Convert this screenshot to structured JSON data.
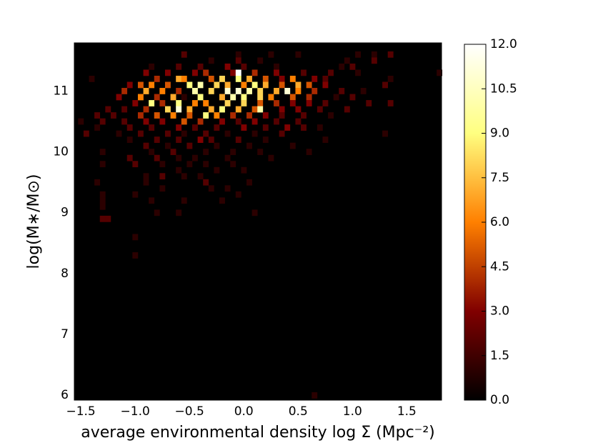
{
  "chart_data": {
    "type": "heatmap",
    "xlabel": "average environmental density log Σ (Mpc⁻²)",
    "ylabel": "log(M∗/M⊙)",
    "xlim": [
      -1.56,
      1.82
    ],
    "ylim": [
      5.92,
      11.79
    ],
    "xticks": [
      {
        "value": -1.5,
        "label": "−1.5"
      },
      {
        "value": -1.0,
        "label": "−1.0"
      },
      {
        "value": -0.5,
        "label": "−0.5"
      },
      {
        "value": 0.0,
        "label": "0.0"
      },
      {
        "value": 0.5,
        "label": "0.5"
      },
      {
        "value": 1.0,
        "label": "1.0"
      },
      {
        "value": 1.5,
        "label": "1.5"
      }
    ],
    "yticks": [
      6,
      7,
      8,
      9,
      10,
      11
    ],
    "colormap": "afmhot",
    "clim": [
      0,
      12
    ],
    "cticks": [
      {
        "value": 0,
        "label": "0.0"
      },
      {
        "value": 1.5,
        "label": "1.5"
      },
      {
        "value": 3,
        "label": "3.0"
      },
      {
        "value": 4.5,
        "label": "4.5"
      },
      {
        "value": 6,
        "label": "6.0"
      },
      {
        "value": 7.5,
        "label": "7.5"
      },
      {
        "value": 9,
        "label": "9.0"
      },
      {
        "value": 10.5,
        "label": "10.5"
      },
      {
        "value": 12,
        "label": "12.0"
      }
    ],
    "cells": [
      [
        -0.55,
        11.6,
        2
      ],
      [
        -0.05,
        11.6,
        1
      ],
      [
        0.25,
        11.6,
        1
      ],
      [
        0.5,
        11.6,
        1
      ],
      [
        1.05,
        11.6,
        1
      ],
      [
        1.2,
        11.6,
        1
      ],
      [
        1.35,
        11.6,
        2
      ],
      [
        -0.3,
        11.5,
        1
      ],
      [
        -0.05,
        11.5,
        2
      ],
      [
        0.15,
        11.5,
        1
      ],
      [
        0.95,
        11.5,
        1
      ],
      [
        1.2,
        11.5,
        2
      ],
      [
        -0.85,
        11.4,
        1
      ],
      [
        -0.6,
        11.4,
        2
      ],
      [
        -0.4,
        11.4,
        2
      ],
      [
        -0.15,
        11.4,
        3
      ],
      [
        0.0,
        11.4,
        2
      ],
      [
        0.3,
        11.4,
        1
      ],
      [
        0.9,
        11.4,
        1
      ],
      [
        1.0,
        11.4,
        2
      ],
      [
        -0.9,
        11.3,
        3
      ],
      [
        -0.7,
        11.3,
        3
      ],
      [
        -0.45,
        11.3,
        3
      ],
      [
        -0.35,
        11.3,
        4
      ],
      [
        -0.1,
        11.3,
        3
      ],
      [
        -0.05,
        11.3,
        12
      ],
      [
        0.1,
        11.3,
        4
      ],
      [
        0.3,
        11.3,
        3
      ],
      [
        0.55,
        11.3,
        2
      ],
      [
        0.8,
        11.3,
        2
      ],
      [
        1.05,
        11.3,
        1
      ],
      [
        1.8,
        11.3,
        1
      ],
      [
        -1.4,
        11.2,
        1
      ],
      [
        -0.8,
        11.2,
        4
      ],
      [
        -0.6,
        11.2,
        7
      ],
      [
        -0.55,
        11.2,
        6
      ],
      [
        -0.3,
        11.2,
        5
      ],
      [
        -0.2,
        11.2,
        8
      ],
      [
        -0.05,
        11.2,
        9
      ],
      [
        0.05,
        11.2,
        7
      ],
      [
        0.2,
        11.2,
        5
      ],
      [
        0.35,
        11.2,
        3
      ],
      [
        0.45,
        11.2,
        6
      ],
      [
        0.65,
        11.2,
        3
      ],
      [
        0.75,
        11.2,
        2
      ],
      [
        1.35,
        11.2,
        1
      ],
      [
        -1.05,
        11.1,
        3
      ],
      [
        -0.95,
        11.1,
        5
      ],
      [
        -0.85,
        11.1,
        6
      ],
      [
        -0.7,
        11.1,
        5
      ],
      [
        -0.5,
        11.1,
        9
      ],
      [
        -0.4,
        11.1,
        10
      ],
      [
        -0.25,
        11.1,
        8
      ],
      [
        -0.15,
        11.1,
        7
      ],
      [
        0.0,
        11.1,
        6
      ],
      [
        0.1,
        11.1,
        9
      ],
      [
        0.2,
        11.1,
        7
      ],
      [
        0.35,
        11.1,
        5
      ],
      [
        0.5,
        11.1,
        7
      ],
      [
        0.6,
        11.1,
        5
      ],
      [
        0.75,
        11.1,
        3
      ],
      [
        1.3,
        11.1,
        2
      ],
      [
        -1.1,
        11.0,
        4
      ],
      [
        -0.9,
        11.0,
        7
      ],
      [
        -0.75,
        11.0,
        6
      ],
      [
        -0.6,
        11.0,
        4
      ],
      [
        -0.45,
        11.0,
        10
      ],
      [
        -0.3,
        11.0,
        8
      ],
      [
        -0.15,
        11.0,
        11
      ],
      [
        -0.05,
        11.0,
        11
      ],
      [
        0.05,
        11.0,
        10
      ],
      [
        0.15,
        11.0,
        8
      ],
      [
        0.3,
        11.0,
        7
      ],
      [
        0.4,
        11.0,
        11
      ],
      [
        0.5,
        11.0,
        6
      ],
      [
        0.65,
        11.0,
        4
      ],
      [
        0.9,
        11.0,
        2
      ],
      [
        1.1,
        11.0,
        1
      ],
      [
        -1.15,
        10.9,
        3
      ],
      [
        -0.95,
        10.9,
        6
      ],
      [
        -0.8,
        10.9,
        4
      ],
      [
        -0.65,
        10.9,
        7
      ],
      [
        -0.55,
        10.9,
        1
      ],
      [
        -0.4,
        10.9,
        9
      ],
      [
        -0.2,
        10.9,
        7
      ],
      [
        -0.1,
        10.9,
        10
      ],
      [
        0.0,
        10.9,
        9
      ],
      [
        0.15,
        10.9,
        8
      ],
      [
        0.25,
        10.9,
        6
      ],
      [
        0.45,
        10.9,
        5
      ],
      [
        0.6,
        10.9,
        4
      ],
      [
        0.85,
        10.9,
        1
      ],
      [
        1.0,
        10.9,
        2
      ],
      [
        -1.0,
        10.8,
        3
      ],
      [
        -0.85,
        10.8,
        9
      ],
      [
        -0.75,
        10.8,
        4
      ],
      [
        -0.6,
        10.8,
        9
      ],
      [
        -0.45,
        10.8,
        6
      ],
      [
        -0.35,
        10.8,
        6
      ],
      [
        -0.15,
        10.8,
        8
      ],
      [
        0.0,
        10.8,
        8
      ],
      [
        0.15,
        10.8,
        5
      ],
      [
        0.3,
        10.8,
        4
      ],
      [
        0.45,
        10.8,
        3
      ],
      [
        0.6,
        10.8,
        3
      ],
      [
        0.75,
        10.8,
        2
      ],
      [
        1.15,
        10.8,
        2
      ],
      [
        1.35,
        10.8,
        2
      ],
      [
        -1.25,
        10.7,
        2
      ],
      [
        -1.1,
        10.7,
        2
      ],
      [
        -0.9,
        10.7,
        4
      ],
      [
        -0.7,
        10.7,
        8
      ],
      [
        -0.6,
        10.7,
        11
      ],
      [
        -0.5,
        10.7,
        7
      ],
      [
        -0.3,
        10.7,
        7
      ],
      [
        -0.2,
        10.7,
        9
      ],
      [
        -0.05,
        10.7,
        7
      ],
      [
        0.1,
        10.7,
        5
      ],
      [
        0.15,
        10.7,
        10
      ],
      [
        0.35,
        10.7,
        3
      ],
      [
        0.5,
        10.7,
        3
      ],
      [
        0.7,
        10.7,
        2
      ],
      [
        0.95,
        10.7,
        2
      ],
      [
        -1.35,
        10.6,
        2
      ],
      [
        -1.2,
        10.6,
        2
      ],
      [
        -0.95,
        10.6,
        4
      ],
      [
        -0.8,
        10.6,
        5
      ],
      [
        -0.65,
        10.6,
        6
      ],
      [
        -0.5,
        10.6,
        5
      ],
      [
        -0.35,
        10.6,
        9
      ],
      [
        -0.25,
        10.6,
        6
      ],
      [
        -0.1,
        10.6,
        4
      ],
      [
        0.05,
        10.6,
        4
      ],
      [
        0.2,
        10.6,
        3
      ],
      [
        0.35,
        10.6,
        2
      ],
      [
        0.55,
        10.6,
        2
      ],
      [
        0.8,
        10.6,
        1
      ],
      [
        -1.5,
        10.5,
        1
      ],
      [
        -1.3,
        10.5,
        2
      ],
      [
        -1.1,
        10.5,
        2
      ],
      [
        -0.9,
        10.5,
        3
      ],
      [
        -0.75,
        10.5,
        3
      ],
      [
        -0.55,
        10.5,
        5
      ],
      [
        -0.4,
        10.5,
        4
      ],
      [
        -0.2,
        10.5,
        3
      ],
      [
        -0.05,
        10.5,
        2
      ],
      [
        0.1,
        10.5,
        3
      ],
      [
        0.3,
        10.5,
        2
      ],
      [
        0.5,
        10.5,
        2
      ],
      [
        -1.35,
        10.4,
        1
      ],
      [
        -1.05,
        10.4,
        2
      ],
      [
        -0.85,
        10.4,
        2
      ],
      [
        -0.6,
        10.4,
        3
      ],
      [
        -0.45,
        10.4,
        2
      ],
      [
        -0.25,
        10.4,
        2
      ],
      [
        0.0,
        10.4,
        3
      ],
      [
        0.2,
        10.4,
        2
      ],
      [
        0.4,
        10.4,
        3
      ],
      [
        0.55,
        10.4,
        2
      ],
      [
        0.7,
        10.4,
        1
      ],
      [
        -1.45,
        10.3,
        2
      ],
      [
        -1.15,
        10.3,
        1
      ],
      [
        -0.95,
        10.3,
        2
      ],
      [
        -0.7,
        10.3,
        2
      ],
      [
        -0.55,
        10.3,
        1
      ],
      [
        -0.35,
        10.3,
        2
      ],
      [
        -0.15,
        10.3,
        1
      ],
      [
        0.1,
        10.3,
        1
      ],
      [
        0.35,
        10.3,
        2
      ],
      [
        1.3,
        10.3,
        1
      ],
      [
        -1.05,
        10.2,
        1
      ],
      [
        -0.8,
        10.2,
        2
      ],
      [
        -0.6,
        10.2,
        2
      ],
      [
        -0.4,
        10.2,
        3
      ],
      [
        -0.3,
        10.2,
        2
      ],
      [
        -0.05,
        10.2,
        2
      ],
      [
        0.2,
        10.2,
        1
      ],
      [
        0.75,
        10.2,
        1
      ],
      [
        -0.9,
        10.1,
        2
      ],
      [
        -0.7,
        10.1,
        1
      ],
      [
        -0.5,
        10.1,
        2
      ],
      [
        -0.25,
        10.1,
        1
      ],
      [
        0.05,
        10.1,
        1
      ],
      [
        0.45,
        10.1,
        1
      ],
      [
        -1.3,
        10.0,
        1
      ],
      [
        -0.85,
        10.0,
        1
      ],
      [
        -0.65,
        10.0,
        2
      ],
      [
        -0.35,
        10.0,
        1
      ],
      [
        -0.1,
        10.0,
        1
      ],
      [
        0.15,
        10.0,
        1
      ],
      [
        0.6,
        10.0,
        1
      ],
      [
        -1.05,
        9.9,
        2
      ],
      [
        -0.8,
        9.9,
        2
      ],
      [
        -0.6,
        9.9,
        1
      ],
      [
        -0.45,
        9.9,
        1
      ],
      [
        -0.15,
        9.9,
        1
      ],
      [
        0.25,
        9.9,
        1
      ],
      [
        -1.3,
        9.8,
        1
      ],
      [
        -1.0,
        9.8,
        2
      ],
      [
        -0.75,
        9.8,
        1
      ],
      [
        -0.5,
        9.8,
        1
      ],
      [
        -0.35,
        9.8,
        1
      ],
      [
        -0.1,
        9.8,
        1
      ],
      [
        -0.6,
        9.7,
        1
      ],
      [
        -0.25,
        9.7,
        1
      ],
      [
        0.0,
        9.7,
        1
      ],
      [
        -0.9,
        9.6,
        1
      ],
      [
        -0.75,
        9.6,
        2
      ],
      [
        -0.55,
        9.6,
        1
      ],
      [
        -0.4,
        9.6,
        1
      ],
      [
        -1.35,
        9.5,
        1
      ],
      [
        -0.9,
        9.5,
        1
      ],
      [
        -0.35,
        9.5,
        2
      ],
      [
        0.05,
        9.5,
        1
      ],
      [
        -0.75,
        9.4,
        1
      ],
      [
        -0.3,
        9.4,
        1
      ],
      [
        -0.15,
        9.4,
        1
      ],
      [
        -1.3,
        9.3,
        1
      ],
      [
        -1.0,
        9.3,
        1
      ],
      [
        -0.05,
        9.3,
        1
      ],
      [
        -1.3,
        9.2,
        1
      ],
      [
        -0.85,
        9.2,
        1
      ],
      [
        -0.55,
        9.2,
        1
      ],
      [
        -0.2,
        9.2,
        1
      ],
      [
        -1.3,
        9.1,
        1
      ],
      [
        -0.8,
        9.0,
        1
      ],
      [
        -0.6,
        9.0,
        1
      ],
      [
        0.1,
        9.0,
        1
      ],
      [
        -1.3,
        8.9,
        2
      ],
      [
        -1.25,
        8.9,
        2
      ],
      [
        -1.0,
        8.6,
        1
      ],
      [
        -1.0,
        8.3,
        1
      ],
      [
        0.65,
        6.0,
        1
      ]
    ]
  }
}
